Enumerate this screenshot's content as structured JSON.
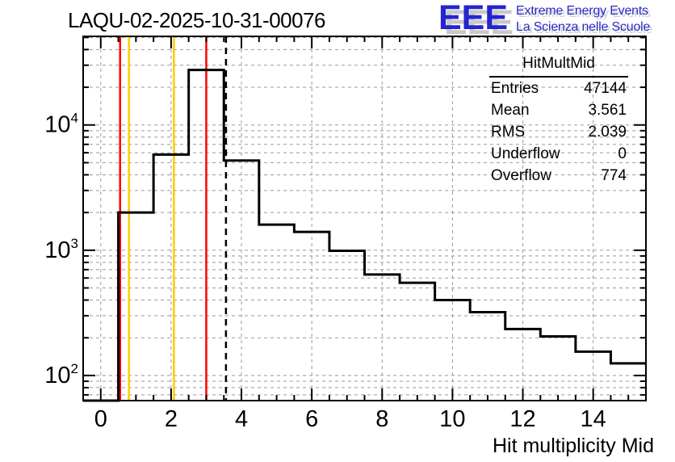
{
  "chart_data": {
    "type": "bar",
    "title": "LAQU-02-2025-10-31-00076",
    "xlabel": "Hit multiplicity Mid",
    "ylabel": "",
    "yscale": "log",
    "xlim": [
      -0.5,
      15.5
    ],
    "ylim": [
      63,
      51000
    ],
    "grid": true,
    "legend": "none",
    "x_major_ticks": [
      0,
      2,
      4,
      6,
      8,
      10,
      12,
      14
    ],
    "y_major_ticks": [
      100,
      1000,
      10000
    ],
    "histogram": {
      "bin_start": -0.5,
      "bin_width": 1,
      "bin_centers": [
        0,
        1,
        2,
        3,
        4,
        5,
        6,
        7,
        8,
        9,
        10,
        11,
        12,
        13,
        14,
        15
      ],
      "values": [
        0,
        2000,
        5800,
        27500,
        5200,
        1600,
        1400,
        990,
        640,
        550,
        400,
        320,
        235,
        205,
        155,
        125
      ]
    },
    "marker_lines": [
      {
        "x": 0.55,
        "color": "#ff0000",
        "style": "solid",
        "label": "red-marker-low"
      },
      {
        "x": 0.8,
        "color": "#ffcc00",
        "style": "solid",
        "label": "yellow-marker-low"
      },
      {
        "x": 2.08,
        "color": "#ffcc00",
        "style": "solid",
        "label": "yellow-marker-high"
      },
      {
        "x": 3.0,
        "color": "#ff0000",
        "style": "solid",
        "label": "red-marker-high"
      },
      {
        "x": 3.56,
        "color": "#000000",
        "style": "dashed",
        "label": "mean-line"
      }
    ],
    "line_color": "#000000",
    "grid_color": "#999999"
  },
  "logo": {
    "acronym": "EEE",
    "line1": "Extreme Energy Events",
    "line2": "La Scienza nelle Scuole",
    "blue": "#2424d0",
    "shadow_gray": "#c9c9c9"
  },
  "stats": {
    "title": "HitMultMid",
    "rows": [
      {
        "label": "Entries",
        "value": "47144"
      },
      {
        "label": "Mean",
        "value": "3.561"
      },
      {
        "label": "RMS",
        "value": "2.039"
      },
      {
        "label": "Underflow",
        "value": "0"
      },
      {
        "label": "Overflow",
        "value": "774"
      }
    ]
  }
}
